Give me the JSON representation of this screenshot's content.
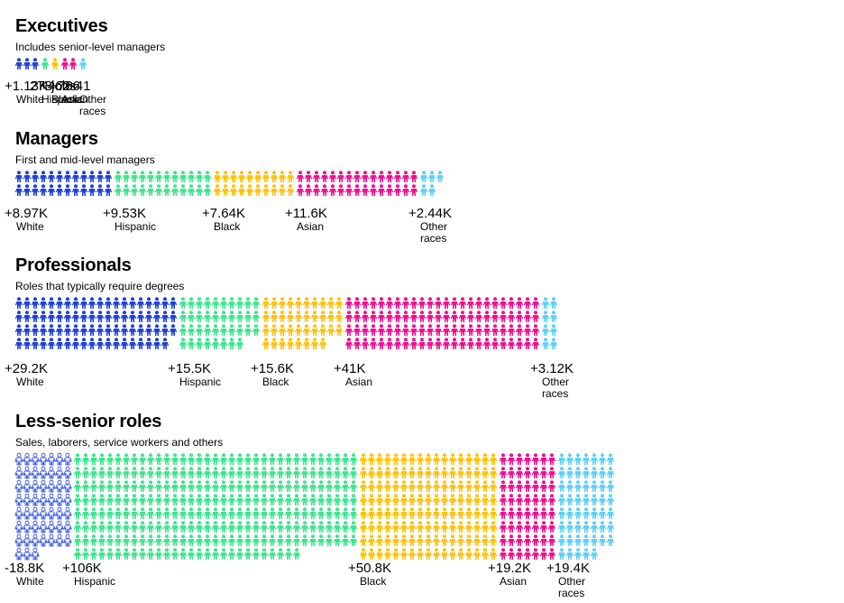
{
  "colors": {
    "White": "#1f3fd9",
    "Hispanic": "#3de68c",
    "Black": "#ffc20a",
    "Asian": "#ef0f8f",
    "Other races": "#5fd0f5"
  },
  "icon": "person-icon",
  "chart_data": [
    {
      "type": "pictogram",
      "title": "Executives",
      "subtitle": "Includes senior-level managers",
      "categories": [
        "White",
        "Hispanic",
        "Black",
        "Asian",
        "Other races"
      ],
      "values": [
        1130,
        278,
        462,
        766,
        41
      ],
      "value_labels": [
        "1.13K jobs",
        "278",
        "462",
        "766",
        "41"
      ],
      "label_prefixes": [
        "+",
        "",
        "+",
        "+",
        "+"
      ],
      "icon_counts": [
        3,
        1,
        1,
        2,
        1
      ]
    },
    {
      "type": "pictogram",
      "title": "Managers",
      "subtitle": "First and mid-level managers",
      "categories": [
        "White",
        "Hispanic",
        "Black",
        "Asian",
        "Other races"
      ],
      "values": [
        8970,
        9530,
        7640,
        11600,
        2440
      ],
      "value_labels": [
        "8.97K",
        "9.53K",
        "7.64K",
        "11.6K",
        "2.44K"
      ],
      "label_prefixes": [
        "+",
        "+",
        "+",
        "+",
        "+"
      ],
      "icon_counts": [
        24,
        24,
        20,
        30,
        5
      ]
    },
    {
      "type": "pictogram",
      "title": "Professionals",
      "subtitle": "Roles that typically require degrees",
      "categories": [
        "White",
        "Hispanic",
        "Black",
        "Asian",
        "Other races"
      ],
      "values": [
        29200,
        15500,
        15600,
        41000,
        3120
      ],
      "value_labels": [
        "29.2K",
        "15.5K",
        "15.6K",
        "41K",
        "3.12K"
      ],
      "label_prefixes": [
        "+",
        "+",
        "+",
        "+",
        "+"
      ],
      "icon_counts": [
        79,
        38,
        38,
        96,
        8
      ]
    },
    {
      "type": "pictogram",
      "title": "Less-senior roles",
      "subtitle": "Sales, laborers, service workers and others",
      "categories": [
        "White",
        "Hispanic",
        "Black",
        "Asian",
        "Other races"
      ],
      "values": [
        -18800,
        106000,
        50800,
        19200,
        19400
      ],
      "value_labels": [
        "18.8K",
        "106K",
        "50.8K",
        "19.2K",
        "19.4K"
      ],
      "label_prefixes": [
        "-",
        "+",
        "+",
        "+",
        "+"
      ],
      "icon_counts": [
        52,
        273,
        136,
        56,
        54
      ]
    }
  ]
}
